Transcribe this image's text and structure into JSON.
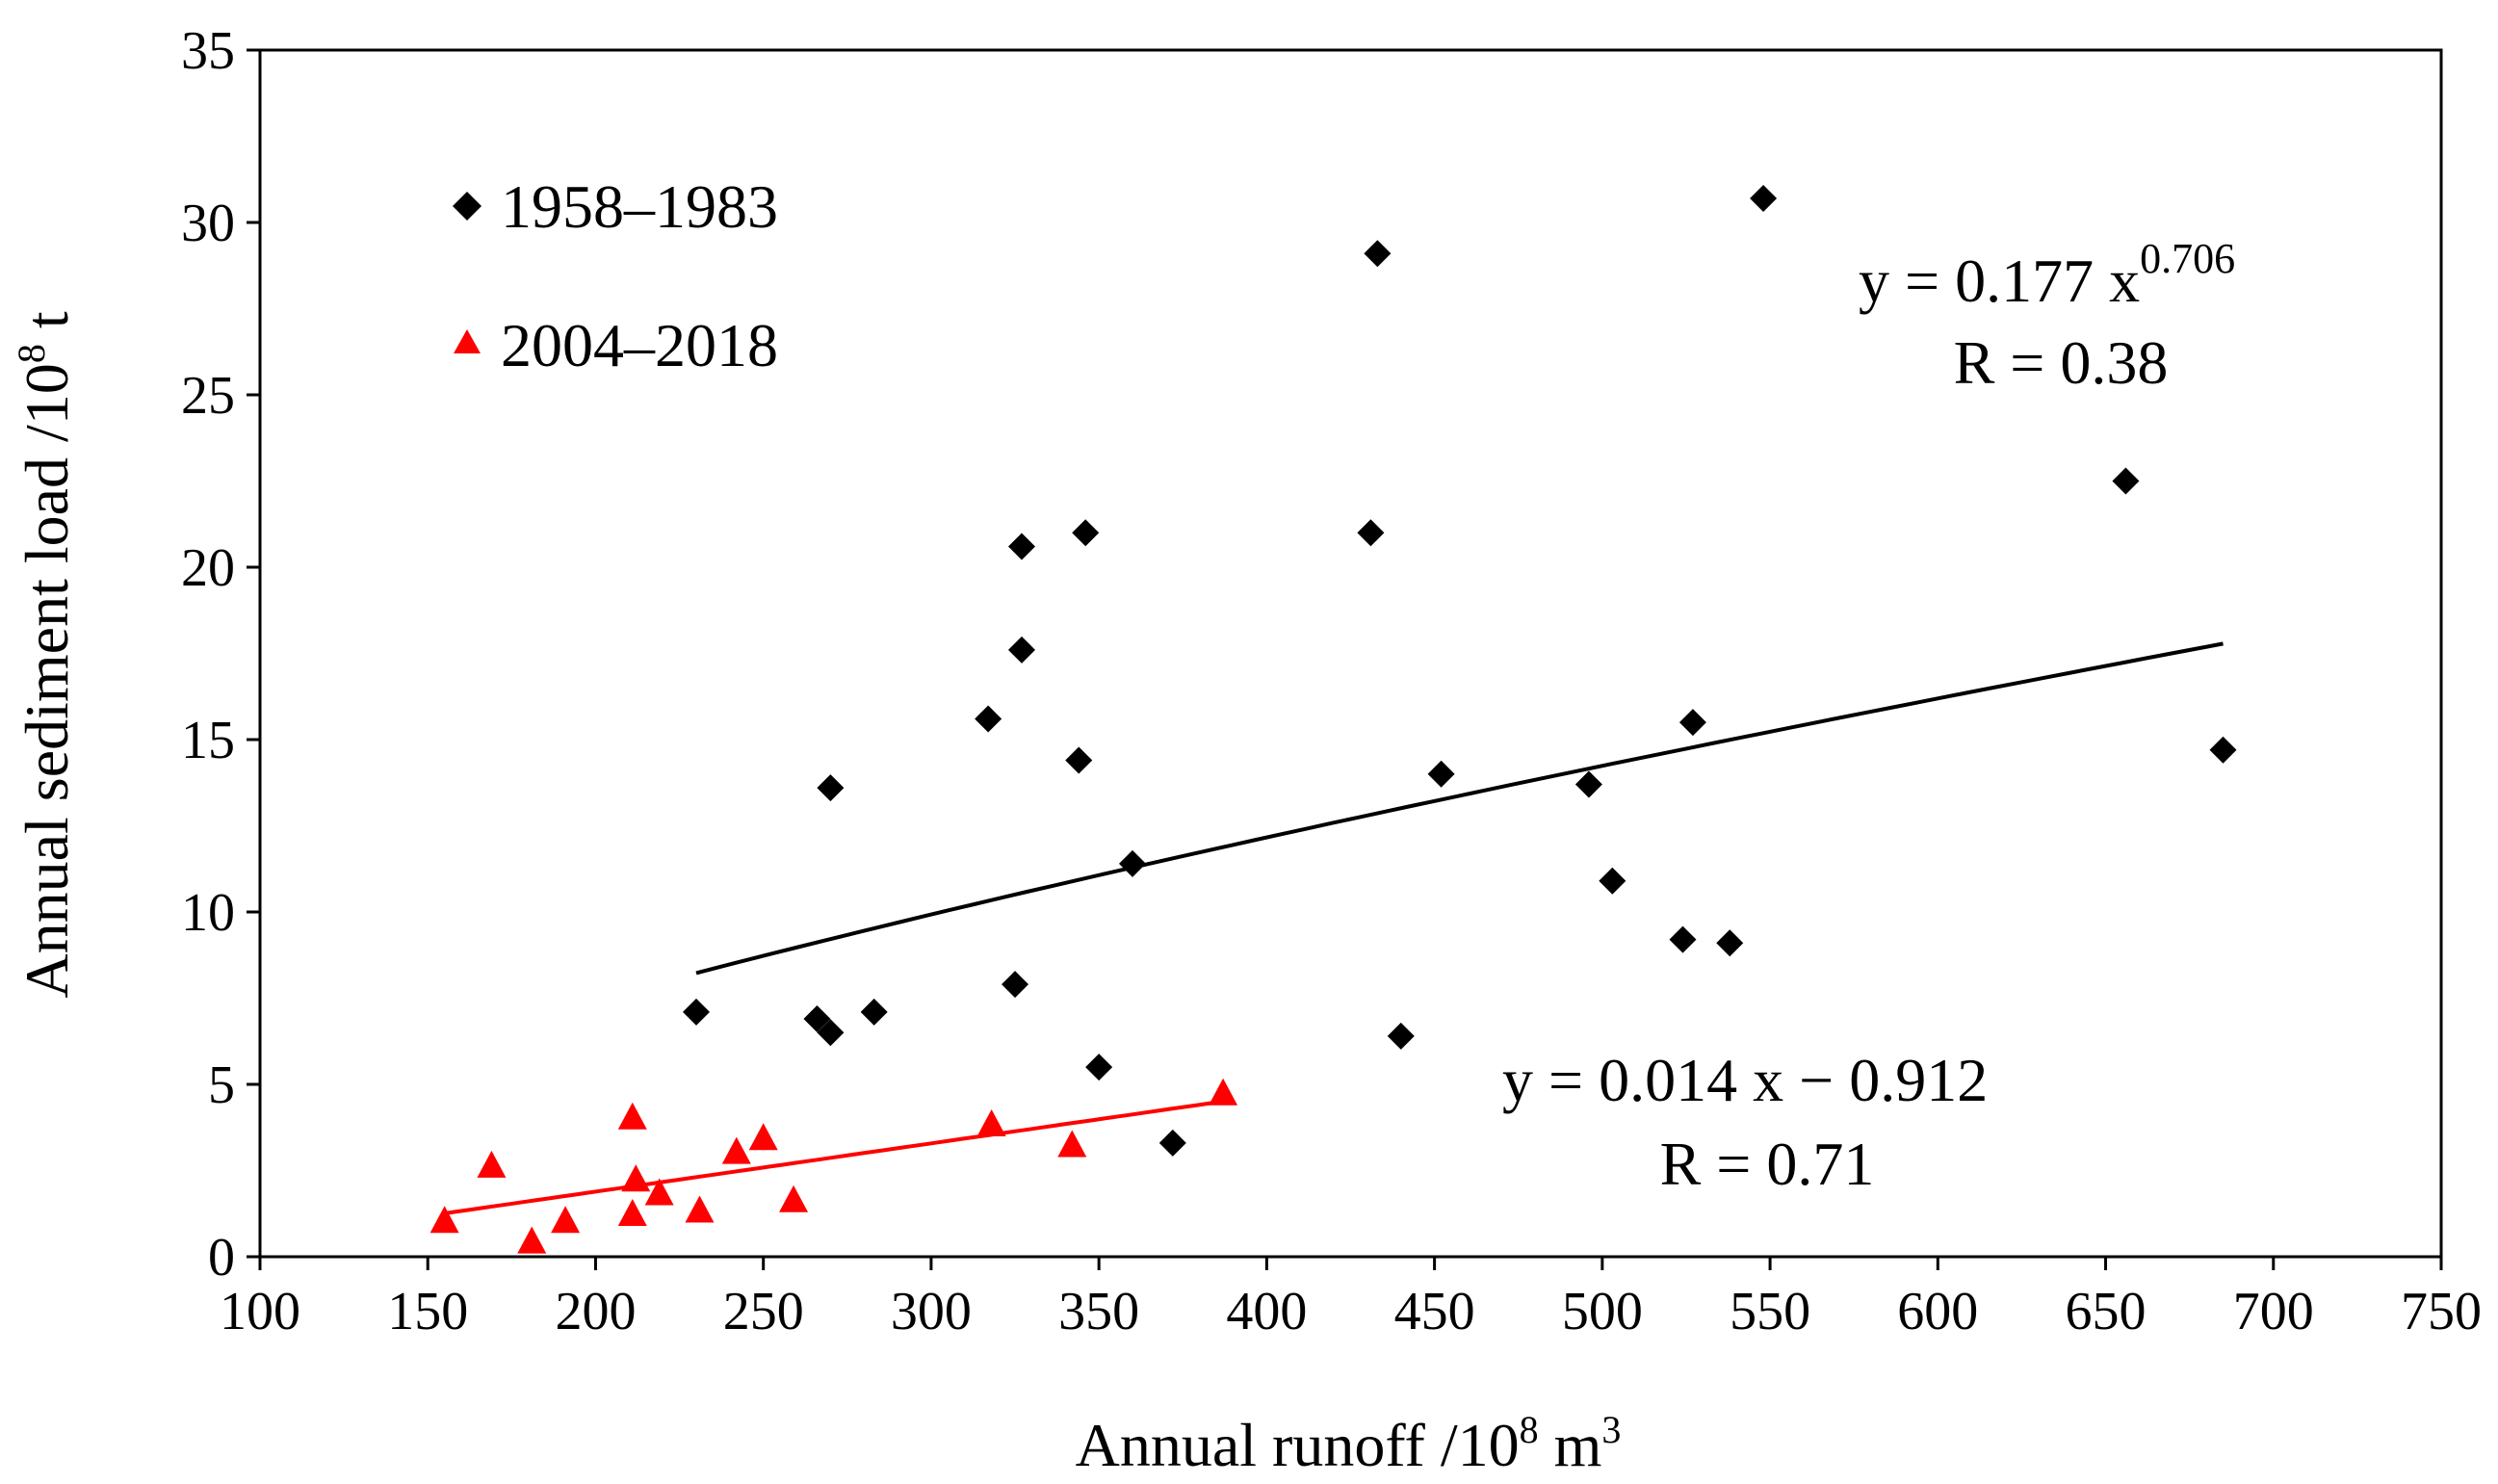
{
  "chart_data": {
    "type": "scatter",
    "title": "",
    "xlabel": "Annual runoff /10",
    "xlabel_sup": "8",
    "xlabel_unit": " m",
    "xlabel_unit_sup": "3",
    "ylabel": "Annual sediment load /10",
    "ylabel_sup": "8",
    "ylabel_unit": " t",
    "xlim": [
      100,
      750
    ],
    "ylim": [
      0,
      35
    ],
    "xticks": [
      "100",
      "150",
      "200",
      "250",
      "300",
      "350",
      "400",
      "450",
      "500",
      "550",
      "600",
      "650",
      "700",
      "750"
    ],
    "yticks": [
      "0",
      "5",
      "10",
      "15",
      "20",
      "25",
      "30",
      "35"
    ],
    "grid": false,
    "legend_position": "top-left",
    "series": [
      {
        "name": "1958–1983",
        "marker": "diamond",
        "color": "#000000",
        "points": [
          [
            230,
            7.1
          ],
          [
            266,
            6.9
          ],
          [
            270,
            6.5
          ],
          [
            270,
            13.6
          ],
          [
            283,
            7.1
          ],
          [
            317,
            15.6
          ],
          [
            325,
            7.9
          ],
          [
            327,
            20.6
          ],
          [
            327,
            17.6
          ],
          [
            344,
            14.4
          ],
          [
            346,
            21.0
          ],
          [
            350,
            5.5
          ],
          [
            360,
            11.4
          ],
          [
            372,
            3.3
          ],
          [
            431,
            21.0
          ],
          [
            433,
            29.1
          ],
          [
            440,
            6.4
          ],
          [
            452,
            14.0
          ],
          [
            496,
            13.7
          ],
          [
            503,
            10.9
          ],
          [
            524,
            9.2
          ],
          [
            527,
            15.5
          ],
          [
            538,
            9.1
          ],
          [
            548,
            30.7
          ],
          [
            656,
            22.5
          ],
          [
            685,
            14.7
          ]
        ],
        "fit": {
          "type": "power",
          "a": 0.177,
          "b": 0.706,
          "x_range": [
            230,
            685
          ],
          "equation_prefix": "y = 0.177 x",
          "equation_exp": "0.706",
          "r_label": "R = 0.38"
        }
      },
      {
        "name": "2004–2018",
        "marker": "triangle",
        "color": "#ff0000",
        "points": [
          [
            155,
            1.0
          ],
          [
            169,
            2.6
          ],
          [
            181,
            0.4
          ],
          [
            191,
            1.0
          ],
          [
            211,
            1.2
          ],
          [
            211,
            4.0
          ],
          [
            212,
            2.2
          ],
          [
            219,
            1.8
          ],
          [
            231,
            1.3
          ],
          [
            242,
            3.0
          ],
          [
            250,
            3.4
          ],
          [
            259,
            1.6
          ],
          [
            318,
            3.8
          ],
          [
            342,
            3.2
          ],
          [
            387,
            4.7
          ]
        ],
        "fit": {
          "type": "linear",
          "slope": 0.014,
          "intercept": -0.912,
          "x_range": [
            155,
            387
          ],
          "equation": "y = 0.014 x − 0.912",
          "r_label": "R = 0.71"
        }
      }
    ]
  }
}
